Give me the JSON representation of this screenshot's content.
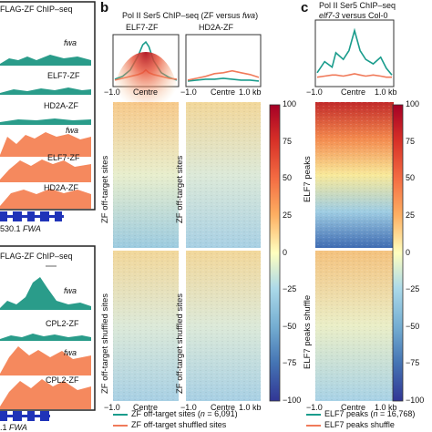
{
  "colors": {
    "teal": "#1a9c8c",
    "salmon": "#f07a5a",
    "track_teal": "#2a9c8a",
    "track_salmon": "#f5895e",
    "gene_blue": "#1f33b8",
    "box_border": "#222222"
  },
  "panel_a": {
    "top": {
      "title": "FLAG-ZF ChIP–seq",
      "tracks": [
        "fwa",
        "ELF7-ZF",
        "HD2A-ZF",
        "fwa",
        "ELF7-ZF",
        "HD2A-ZF"
      ],
      "gene_label_prefix": "530.1",
      "gene_label_italic": "FWA"
    },
    "bottom": {
      "title": "FLAG-ZF ChIP–seq",
      "tracks": [
        "fwa",
        "CPL2-ZF",
        "fwa",
        "CPL2-ZF"
      ],
      "gene_label_prefix": ".1",
      "gene_label_italic": "FWA"
    }
  },
  "panel_b": {
    "letter": "b",
    "title_prefix": "Pol II Ser5 ChIP–seq (ZF versus ",
    "title_italic": "fwa",
    "title_suffix": ")",
    "col1_label": "ELF7-ZF",
    "col2_label": "HD2A-ZF",
    "row1_label": "ZF off-target sites",
    "row2_label": "ZF off-target shuffled sites",
    "colorbar_ticks": [
      "100",
      "75",
      "50",
      "25",
      "0",
      "−25",
      "−50",
      "−75",
      "−100"
    ],
    "legend": [
      {
        "label_prefix": "ZF off-target sites (",
        "label_italic": "n",
        "label_suffix": " = 6,091)"
      },
      {
        "label": "ZF off-target shuffled sites"
      }
    ]
  },
  "panel_c": {
    "letter": "c",
    "title": "Pol II Ser5 ChIP–seq",
    "subtitle_italic": "elf7-3",
    "subtitle_suffix": " versus Col-0",
    "row1_label": "ELF7 peaks",
    "row2_label": "ELF7 peaks shuffle",
    "colorbar_ticks": [
      "100",
      "75",
      "50",
      "25",
      "0",
      "−25",
      "−50",
      "−75",
      "−100"
    ],
    "legend": [
      {
        "label_prefix": "ELF7 peaks (",
        "label_italic": "n",
        "label_suffix": " = 16,768)"
      },
      {
        "label": "ELF7 peaks shuffle"
      }
    ]
  },
  "x_ticks": [
    "−1.0",
    "Centre",
    "1.0 kb"
  ],
  "chart_data": [
    {
      "type": "line",
      "panel": "b-ELF7-ZF",
      "x": [
        -1.0,
        -0.75,
        -0.5,
        -0.25,
        -0.1,
        0.0,
        0.1,
        0.25,
        0.5,
        0.75,
        1.0
      ],
      "xlabel": "",
      "ylabel": "",
      "series": [
        {
          "name": "ZF off-target sites (n = 6,091)",
          "values": [
            5,
            8,
            15,
            30,
            42,
            45,
            40,
            25,
            12,
            7,
            4
          ]
        },
        {
          "name": "ZF off-target shuffled sites",
          "values": [
            4,
            6,
            8,
            10,
            12,
            15,
            12,
            10,
            8,
            6,
            5
          ]
        }
      ]
    },
    {
      "type": "line",
      "panel": "b-HD2A-ZF",
      "x": [
        -1.0,
        -0.75,
        -0.5,
        -0.25,
        0.0,
        0.25,
        0.5,
        0.75,
        1.0
      ],
      "series": [
        {
          "name": "ZF off-target sites (n = 6,091)",
          "values": [
            3,
            4,
            5,
            5,
            6,
            5,
            4,
            4,
            3
          ]
        },
        {
          "name": "ZF off-target shuffled sites",
          "values": [
            4,
            6,
            8,
            11,
            12,
            14,
            12,
            10,
            7
          ]
        }
      ]
    },
    {
      "type": "line",
      "panel": "c",
      "x": [
        -1.0,
        -0.8,
        -0.6,
        -0.5,
        -0.3,
        -0.15,
        0.0,
        0.15,
        0.3,
        0.5,
        0.7,
        0.85,
        1.0
      ],
      "series": [
        {
          "name": "ELF7 peaks (n = 16,768)",
          "values": [
            10,
            20,
            15,
            28,
            22,
            30,
            48,
            30,
            22,
            18,
            24,
            14,
            8
          ]
        },
        {
          "name": "ELF7 peaks shuffle",
          "values": [
            6,
            7,
            8,
            8,
            7,
            8,
            9,
            8,
            7,
            8,
            7,
            6,
            6
          ]
        }
      ]
    },
    {
      "type": "heatmap",
      "panel": "b-c",
      "colorbar_range": [
        -100,
        100
      ],
      "colorbar_ticks": [
        100,
        75,
        50,
        25,
        0,
        -25,
        -50,
        -75,
        -100
      ]
    }
  ]
}
